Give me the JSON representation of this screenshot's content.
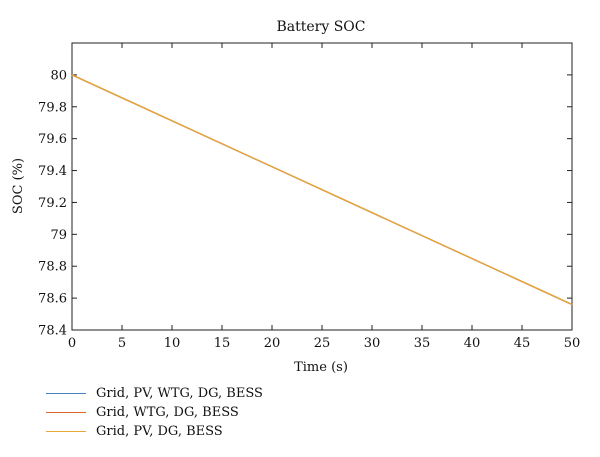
{
  "chart_data": {
    "type": "line",
    "title": "Battery SOC",
    "xlabel": "Time (s)",
    "ylabel": "SOC (%)",
    "xlim": [
      0,
      50
    ],
    "ylim": [
      78.4,
      80.2
    ],
    "xticks": [
      0,
      5,
      10,
      15,
      20,
      25,
      30,
      35,
      40,
      45,
      50
    ],
    "yticks": [
      78.4,
      78.6,
      78.8,
      79,
      79.2,
      79.4,
      79.6,
      79.8,
      80
    ],
    "ytick_labels": [
      "78.4",
      "78.6",
      "78.8",
      "79",
      "79.2",
      "79.4",
      "79.6",
      "79.8",
      "80"
    ],
    "grid": false,
    "legend_position": "bottom-left, below plot",
    "series": [
      {
        "name": "Grid, PV, WTG, DG, BESS",
        "color": "#4a7fc1",
        "x": [
          0,
          50
        ],
        "y": [
          80.0,
          78.56
        ]
      },
      {
        "name": "Grid, WTG, DG, BESS",
        "color": "#d9652b",
        "x": [
          0,
          50
        ],
        "y": [
          80.0,
          78.56
        ]
      },
      {
        "name": "Grid, PV, DG, BESS",
        "color": "#e8a838",
        "x": [
          0,
          50
        ],
        "y": [
          80.0,
          78.56
        ]
      }
    ]
  }
}
